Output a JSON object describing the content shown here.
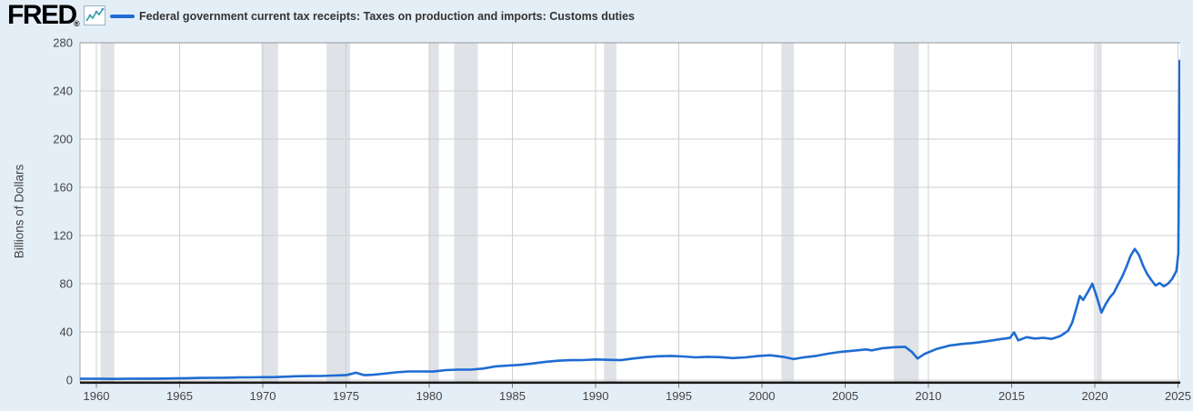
{
  "header": {
    "logo": "FRED",
    "registered": "®",
    "series_label": "Federal government current tax receipts: Taxes on production and imports: Customs duties"
  },
  "chart_data": {
    "type": "line",
    "title": "Federal government current tax receipts: Taxes on production and imports: Customs duties",
    "xlabel": "",
    "ylabel": "Billions of Dollars",
    "y_unit": "Billions of Dollars",
    "x_ticks": [
      1960,
      1965,
      1970,
      1975,
      1980,
      1985,
      1990,
      1995,
      2000,
      2005,
      2010,
      2015,
      2020,
      2025
    ],
    "y_ticks": [
      0,
      40,
      80,
      120,
      160,
      200,
      240,
      280
    ],
    "xlim": [
      1959.0,
      2025.13
    ],
    "ylim": [
      0,
      280
    ],
    "grid": "on",
    "legend_position": "top",
    "line_color": "#1e6cd2",
    "background_color": "#e4eef7",
    "plot_background": "#ffffff",
    "recession_band_color": "#dfe3e8",
    "recession_bands": [
      [
        1960.25,
        1961.08
      ],
      [
        1969.92,
        1970.92
      ],
      [
        1973.83,
        1975.25
      ],
      [
        1980.0,
        1980.58
      ],
      [
        1981.5,
        1982.92
      ],
      [
        1990.5,
        1991.25
      ],
      [
        2001.17,
        2001.92
      ],
      [
        2007.92,
        2009.42
      ],
      [
        2020.08,
        2020.42
      ]
    ],
    "points": [
      [
        1959.0,
        1.1
      ],
      [
        1959.5,
        1.1
      ],
      [
        1960.25,
        1.1
      ],
      [
        1961,
        1.0
      ],
      [
        1961.75,
        1.1
      ],
      [
        1962.5,
        1.2
      ],
      [
        1963.25,
        1.2
      ],
      [
        1964,
        1.3
      ],
      [
        1964.75,
        1.4
      ],
      [
        1965.5,
        1.6
      ],
      [
        1966.25,
        1.8
      ],
      [
        1967,
        1.9
      ],
      [
        1967.75,
        2.0
      ],
      [
        1968.5,
        2.2
      ],
      [
        1969.25,
        2.3
      ],
      [
        1970,
        2.4
      ],
      [
        1970.75,
        2.5
      ],
      [
        1971.5,
        2.9
      ],
      [
        1972,
        3.2
      ],
      [
        1972.75,
        3.3
      ],
      [
        1973.5,
        3.4
      ],
      [
        1974.25,
        3.8
      ],
      [
        1975,
        4.1
      ],
      [
        1975.6,
        6.1
      ],
      [
        1976.1,
        4.1
      ],
      [
        1976.6,
        4.4
      ],
      [
        1977.25,
        5.3
      ],
      [
        1978,
        6.4
      ],
      [
        1978.75,
        7.2
      ],
      [
        1979.5,
        7.2
      ],
      [
        1980.25,
        7.1
      ],
      [
        1981,
        8.3
      ],
      [
        1981.75,
        8.7
      ],
      [
        1982.5,
        8.7
      ],
      [
        1983.25,
        9.6
      ],
      [
        1984,
        11.4
      ],
      [
        1984.75,
        12.1
      ],
      [
        1985.5,
        12.7
      ],
      [
        1986.25,
        13.8
      ],
      [
        1987,
        15.2
      ],
      [
        1987.75,
        16.1
      ],
      [
        1988.5,
        16.5
      ],
      [
        1989.25,
        16.6
      ],
      [
        1990,
        17.1
      ],
      [
        1990.75,
        16.8
      ],
      [
        1991.5,
        16.5
      ],
      [
        1992.25,
        17.9
      ],
      [
        1993,
        19.0
      ],
      [
        1993.75,
        19.8
      ],
      [
        1994.5,
        20.1
      ],
      [
        1995.25,
        19.6
      ],
      [
        1996,
        18.9
      ],
      [
        1996.75,
        19.3
      ],
      [
        1997.5,
        19.0
      ],
      [
        1998.25,
        18.3
      ],
      [
        1999,
        18.9
      ],
      [
        1999.75,
        19.9
      ],
      [
        2000.5,
        20.6
      ],
      [
        2001.25,
        19.3
      ],
      [
        2001.9,
        17.4
      ],
      [
        2002.5,
        18.9
      ],
      [
        2003.25,
        20.1
      ],
      [
        2004,
        22.0
      ],
      [
        2004.75,
        23.5
      ],
      [
        2005.5,
        24.4
      ],
      [
        2006.25,
        25.4
      ],
      [
        2006.6,
        24.7
      ],
      [
        2007.25,
        26.5
      ],
      [
        2008,
        27.3
      ],
      [
        2008.6,
        27.6
      ],
      [
        2009.0,
        23.5
      ],
      [
        2009.35,
        17.9
      ],
      [
        2009.75,
        21.6
      ],
      [
        2010.5,
        25.9
      ],
      [
        2011.25,
        28.6
      ],
      [
        2012,
        30.0
      ],
      [
        2012.75,
        30.9
      ],
      [
        2013.5,
        32.2
      ],
      [
        2014.25,
        33.8
      ],
      [
        2014.9,
        35.0
      ],
      [
        2015.15,
        39.6
      ],
      [
        2015.4,
        33.0
      ],
      [
        2015.9,
        35.6
      ],
      [
        2016.4,
        34.5
      ],
      [
        2016.9,
        35.1
      ],
      [
        2017.4,
        34.2
      ],
      [
        2017.9,
        36.4
      ],
      [
        2018.15,
        38.6
      ],
      [
        2018.4,
        41.0
      ],
      [
        2018.65,
        48.0
      ],
      [
        2018.9,
        60.0
      ],
      [
        2019.1,
        69.8
      ],
      [
        2019.3,
        66.5
      ],
      [
        2019.6,
        73.5
      ],
      [
        2019.85,
        80.0
      ],
      [
        2020.1,
        70.0
      ],
      [
        2020.4,
        56.0
      ],
      [
        2020.65,
        63.0
      ],
      [
        2020.9,
        68.5
      ],
      [
        2021.15,
        72.5
      ],
      [
        2021.4,
        79.5
      ],
      [
        2021.65,
        86.0
      ],
      [
        2021.9,
        94.0
      ],
      [
        2022.15,
        103.0
      ],
      [
        2022.4,
        108.8
      ],
      [
        2022.65,
        104.0
      ],
      [
        2022.9,
        95.0
      ],
      [
        2023.15,
        88.0
      ],
      [
        2023.4,
        83.0
      ],
      [
        2023.65,
        78.5
      ],
      [
        2023.9,
        80.5
      ],
      [
        2024.15,
        77.8
      ],
      [
        2024.4,
        80.0
      ],
      [
        2024.65,
        84.0
      ],
      [
        2024.9,
        90.5
      ],
      [
        2025.02,
        105.0
      ],
      [
        2025.1,
        265.0
      ]
    ]
  }
}
